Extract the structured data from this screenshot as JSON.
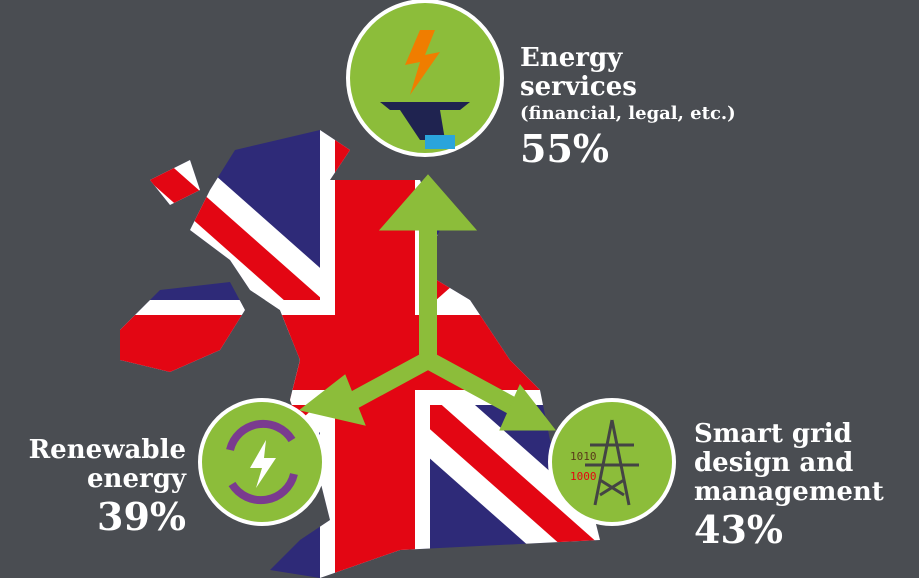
{
  "items": [
    {
      "title": "Energy services",
      "subtitle": "(financial, legal, etc.)",
      "value": "55%"
    },
    {
      "title": "Renewable energy",
      "value": "39%"
    },
    {
      "title": "Smart grid design and management",
      "value": "43%"
    }
  ]
}
